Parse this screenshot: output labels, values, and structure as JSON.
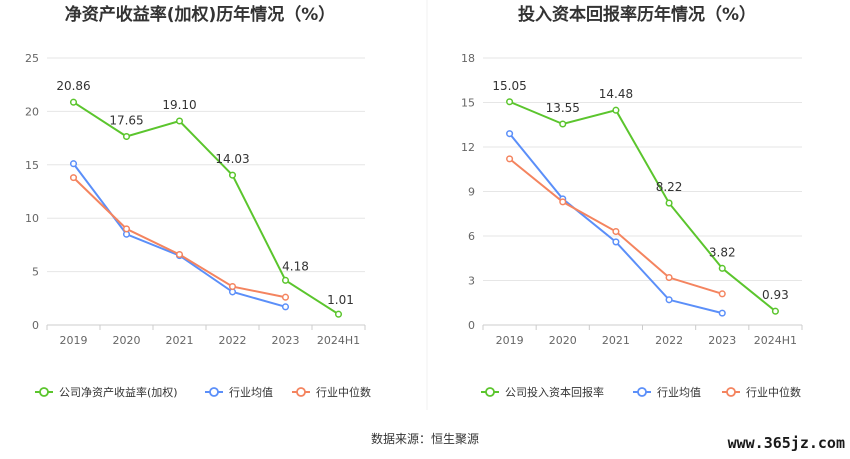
{
  "source_label": "数据来源：恒生聚源",
  "watermark": "www.365jz.com",
  "colors": {
    "company": "#5bc52d",
    "average": "#5b8ff9",
    "median": "#f4845f"
  },
  "chart_data": [
    {
      "type": "line",
      "title": "净资产收益率(加权)历年情况（%）",
      "categories": [
        "2019",
        "2020",
        "2021",
        "2022",
        "2023",
        "2024H1"
      ],
      "ylim": [
        0,
        25
      ],
      "yticks": [
        "0",
        "5",
        "10",
        "15",
        "20",
        "25"
      ],
      "series": [
        {
          "name": "公司净资产收益率(加权)",
          "key": "company",
          "values": [
            20.86,
            17.65,
            19.1,
            14.03,
            4.18,
            1.01
          ],
          "labels": [
            "20.86",
            "17.65",
            "19.10",
            "14.03",
            "4.18",
            "1.01"
          ]
        },
        {
          "name": "行业均值",
          "key": "average",
          "values": [
            15.1,
            8.5,
            6.5,
            3.1,
            1.7,
            null
          ]
        },
        {
          "name": "行业中位数",
          "key": "median",
          "values": [
            13.8,
            9.0,
            6.6,
            3.6,
            2.6,
            null
          ]
        }
      ]
    },
    {
      "type": "line",
      "title": "投入资本回报率历年情况（%）",
      "categories": [
        "2019",
        "2020",
        "2021",
        "2022",
        "2023",
        "2024H1"
      ],
      "ylim": [
        0,
        18
      ],
      "yticks": [
        "0",
        "3",
        "6",
        "9",
        "12",
        "15",
        "18"
      ],
      "series": [
        {
          "name": "公司投入资本回报率",
          "key": "company",
          "values": [
            15.05,
            13.55,
            14.48,
            8.22,
            3.82,
            0.93
          ],
          "labels": [
            "15.05",
            "13.55",
            "14.48",
            "8.22",
            "3.82",
            "0.93"
          ]
        },
        {
          "name": "行业均值",
          "key": "average",
          "values": [
            12.9,
            8.5,
            5.6,
            1.7,
            0.8,
            null
          ]
        },
        {
          "name": "行业中位数",
          "key": "median",
          "values": [
            11.2,
            8.3,
            6.3,
            3.2,
            2.1,
            null
          ]
        }
      ]
    }
  ]
}
